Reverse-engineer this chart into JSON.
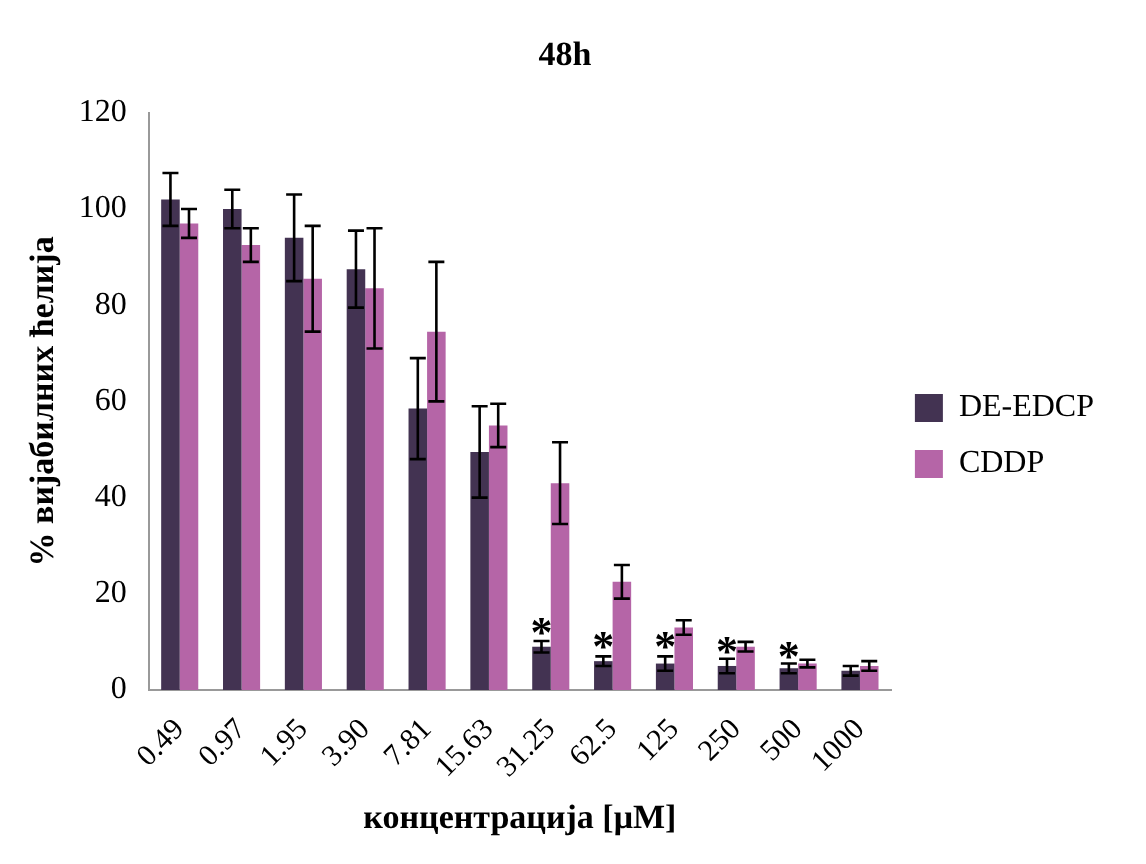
{
  "chart_data": {
    "type": "bar",
    "title": "48h",
    "xlabel": "концентрација [μM]",
    "ylabel": "% вијабилних ћелија",
    "categories": [
      "0.49",
      "0.97",
      "1.95",
      "3.90",
      "7.81",
      "15.63",
      "31.25",
      "62.5",
      "125",
      "250",
      "500",
      "1000"
    ],
    "series": [
      {
        "name": "DE-EDCP",
        "color": "#433352",
        "values": [
          102,
          100,
          94,
          87.5,
          58.5,
          49.5,
          9,
          6,
          5.5,
          5,
          4.5,
          4
        ],
        "errors": [
          5.5,
          4,
          9,
          8,
          10.5,
          9.5,
          1.2,
          1,
          1.5,
          1.5,
          1,
          1
        ]
      },
      {
        "name": "CDDP",
        "color": "#b565a7",
        "values": [
          97,
          92.5,
          85.5,
          83.5,
          74.5,
          55,
          43,
          22.5,
          13,
          9,
          5.5,
          5
        ],
        "errors": [
          3,
          3.5,
          11,
          12.5,
          14.5,
          4.5,
          8.5,
          3.5,
          1.5,
          1,
          0.8,
          1
        ]
      }
    ],
    "ylim": [
      0,
      120
    ],
    "yticks": [
      0,
      20,
      40,
      60,
      80,
      100,
      120
    ],
    "grid": false,
    "legend": "right",
    "annotations": [
      {
        "text": "*",
        "x": "31.25",
        "y": 13
      },
      {
        "text": "*",
        "x": "62.5",
        "y": 10
      },
      {
        "text": "*",
        "x": "125",
        "y": 10
      },
      {
        "text": "*",
        "x": "250",
        "y": 9
      },
      {
        "text": "*",
        "x": "500",
        "y": 8
      }
    ]
  }
}
